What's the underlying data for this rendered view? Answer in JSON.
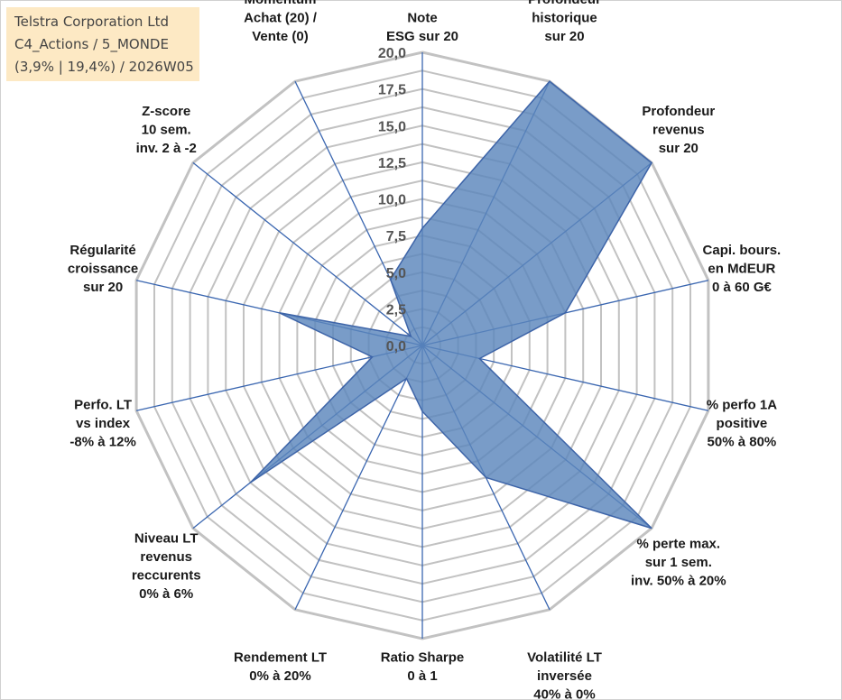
{
  "info_box": {
    "line1": "Telstra Corporation Ltd",
    "line2": "C4_Actions / 5_MONDE",
    "line3": "(3,9% | 19,4%) / 2026W05"
  },
  "colors": {
    "grid": "#c2c2c2",
    "axis": "#3a66b0",
    "fill": "#5b86bc",
    "stroke": "#3d64a8",
    "info_bg": "#fde9c4"
  },
  "chart_data": {
    "type": "radar",
    "title": "",
    "rmin": 0,
    "rmax": 20,
    "tick_values": [
      0,
      2.5,
      5,
      7.5,
      10,
      12.5,
      15,
      17.5,
      20
    ],
    "tick_labels": [
      "0,0",
      "2,5",
      "5,0",
      "7,5",
      "10,0",
      "12,5",
      "15,0",
      "17,5",
      "20,0"
    ],
    "axes": [
      {
        "lines": [
          "Note",
          "ESG sur 20"
        ],
        "value": 8.0
      },
      {
        "lines": [
          "Profondeur",
          "historique",
          "sur 20"
        ],
        "value": 20.0
      },
      {
        "lines": [
          "Profondeur",
          "revenus",
          "sur 20"
        ],
        "value": 20.0
      },
      {
        "lines": [
          "Capi. bours.",
          "en MdEUR",
          "0 à 60 G€"
        ],
        "value": 10.0
      },
      {
        "lines": [
          "% perfo 1A",
          "positive",
          "50% à 80%"
        ],
        "value": 4.0
      },
      {
        "lines": [
          "% perte max.",
          "sur 1 sem.",
          "inv. 50% à 20%"
        ],
        "value": 20.0
      },
      {
        "lines": [
          "Volatilité LT",
          "inversée",
          "40% à 0%"
        ],
        "value": 10.0
      },
      {
        "lines": [
          "Ratio Sharpe",
          "0 à 1"
        ],
        "value": 4.5
      },
      {
        "lines": [
          "Rendement LT",
          "0% à 20%"
        ],
        "value": 2.5
      },
      {
        "lines": [
          "Niveau LT",
          "revenus",
          "reccurents",
          "0% à 6%"
        ],
        "value": 15.0
      },
      {
        "lines": [
          "Perfo. LT",
          "vs index",
          "-8% à 12%"
        ],
        "value": 3.5
      },
      {
        "lines": [
          "Régularité",
          "croissance",
          "sur 20"
        ],
        "value": 10.0
      },
      {
        "lines": [
          "Z-score",
          "10 sem.",
          "inv. 2 à -2"
        ],
        "value": 1.0
      },
      {
        "lines": [
          "Momentum",
          "Achat (20) /",
          "Vente (0)"
        ],
        "value": 5.0
      }
    ]
  }
}
